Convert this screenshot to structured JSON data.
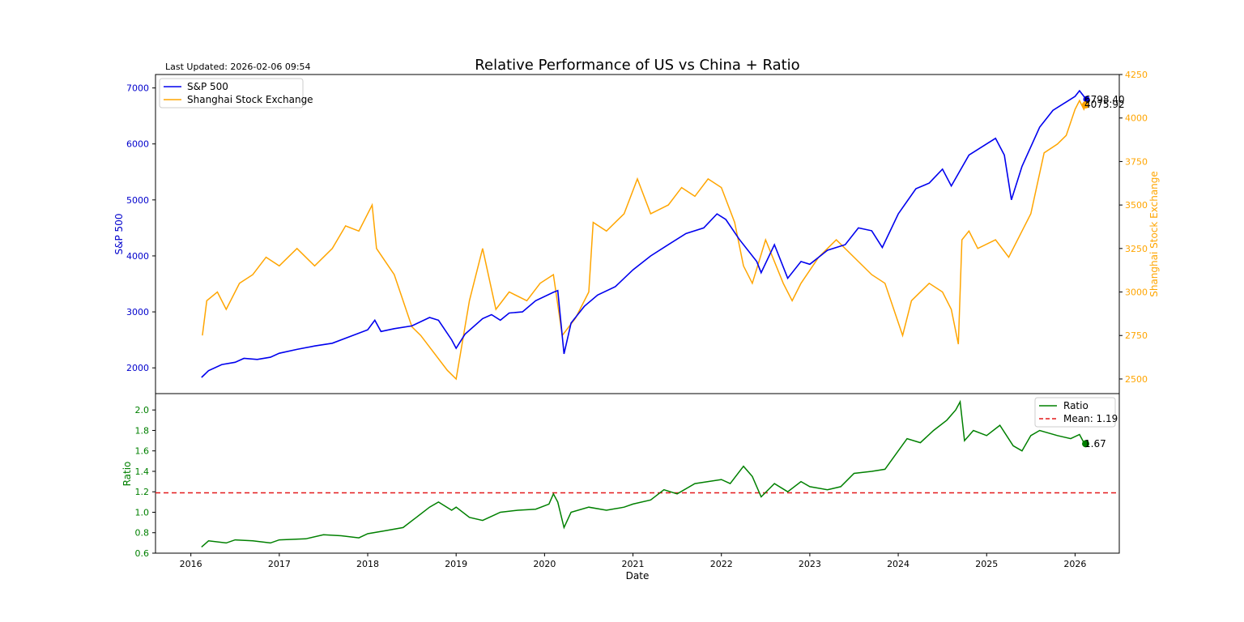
{
  "page": {
    "last_updated": "Last Updated: 2026-02-06 09:54"
  },
  "colors": {
    "sp500": "#0000ee",
    "shanghai": "#ffa500",
    "ratio": "#008000",
    "mean": "#e31a1c",
    "axis": "#000000"
  },
  "chart_data": [
    {
      "type": "line",
      "title": "Relative Performance of US vs China + Ratio",
      "xlabel": "",
      "ylabel_left": "S&P 500",
      "ylabel_right": "Shanghai Stock Exchange",
      "xlim": [
        2015.6,
        2026.5
      ],
      "ylim_left": [
        1540,
        7240
      ],
      "ylim_right": [
        2416,
        4250
      ],
      "yticks_left": [
        2000,
        3000,
        4000,
        5000,
        6000,
        7000
      ],
      "yticks_right": [
        2500,
        2750,
        3000,
        3250,
        3500,
        3750,
        4000,
        4250
      ],
      "legend": "top-left",
      "series": [
        {
          "name": "S&P 500",
          "axis": "left",
          "last_label": "6798.40",
          "points": [
            [
              2016.12,
              1830
            ],
            [
              2016.2,
              1950
            ],
            [
              2016.35,
              2060
            ],
            [
              2016.5,
              2100
            ],
            [
              2016.6,
              2170
            ],
            [
              2016.75,
              2150
            ],
            [
              2016.9,
              2190
            ],
            [
              2017.0,
              2260
            ],
            [
              2017.2,
              2330
            ],
            [
              2017.4,
              2390
            ],
            [
              2017.6,
              2440
            ],
            [
              2017.8,
              2560
            ],
            [
              2018.0,
              2680
            ],
            [
              2018.08,
              2850
            ],
            [
              2018.15,
              2650
            ],
            [
              2018.3,
              2700
            ],
            [
              2018.5,
              2750
            ],
            [
              2018.7,
              2900
            ],
            [
              2018.8,
              2850
            ],
            [
              2018.95,
              2500
            ],
            [
              2019.0,
              2350
            ],
            [
              2019.1,
              2600
            ],
            [
              2019.3,
              2880
            ],
            [
              2019.4,
              2950
            ],
            [
              2019.5,
              2850
            ],
            [
              2019.6,
              2980
            ],
            [
              2019.75,
              3000
            ],
            [
              2019.9,
              3200
            ],
            [
              2020.1,
              3350
            ],
            [
              2020.15,
              3380
            ],
            [
              2020.22,
              2250
            ],
            [
              2020.3,
              2800
            ],
            [
              2020.45,
              3100
            ],
            [
              2020.6,
              3300
            ],
            [
              2020.8,
              3450
            ],
            [
              2021.0,
              3750
            ],
            [
              2021.2,
              4000
            ],
            [
              2021.4,
              4200
            ],
            [
              2021.6,
              4400
            ],
            [
              2021.8,
              4500
            ],
            [
              2021.95,
              4750
            ],
            [
              2022.05,
              4650
            ],
            [
              2022.2,
              4300
            ],
            [
              2022.4,
              3900
            ],
            [
              2022.45,
              3700
            ],
            [
              2022.6,
              4200
            ],
            [
              2022.75,
              3600
            ],
            [
              2022.9,
              3900
            ],
            [
              2023.0,
              3850
            ],
            [
              2023.2,
              4100
            ],
            [
              2023.4,
              4200
            ],
            [
              2023.55,
              4500
            ],
            [
              2023.7,
              4450
            ],
            [
              2023.82,
              4150
            ],
            [
              2024.0,
              4750
            ],
            [
              2024.2,
              5200
            ],
            [
              2024.35,
              5300
            ],
            [
              2024.5,
              5550
            ],
            [
              2024.6,
              5250
            ],
            [
              2024.8,
              5800
            ],
            [
              2025.0,
              6000
            ],
            [
              2025.1,
              6100
            ],
            [
              2025.2,
              5800
            ],
            [
              2025.28,
              5000
            ],
            [
              2025.4,
              5600
            ],
            [
              2025.6,
              6300
            ],
            [
              2025.75,
              6600
            ],
            [
              2025.9,
              6750
            ],
            [
              2026.0,
              6850
            ],
            [
              2026.05,
              6950
            ],
            [
              2026.1,
              6850
            ],
            [
              2026.12,
              6798
            ]
          ]
        },
        {
          "name": "Shanghai Stock Exchange",
          "axis": "right",
          "last_label": "4075.92",
          "points": [
            [
              2016.13,
              2750
            ],
            [
              2016.18,
              2950
            ],
            [
              2016.3,
              3000
            ],
            [
              2016.4,
              2900
            ],
            [
              2016.55,
              3050
            ],
            [
              2016.7,
              3100
            ],
            [
              2016.85,
              3200
            ],
            [
              2017.0,
              3150
            ],
            [
              2017.2,
              3250
            ],
            [
              2017.4,
              3150
            ],
            [
              2017.6,
              3250
            ],
            [
              2017.75,
              3380
            ],
            [
              2017.9,
              3350
            ],
            [
              2018.05,
              3500
            ],
            [
              2018.1,
              3250
            ],
            [
              2018.3,
              3100
            ],
            [
              2018.5,
              2800
            ],
            [
              2018.6,
              2750
            ],
            [
              2018.9,
              2550
            ],
            [
              2019.0,
              2500
            ],
            [
              2019.15,
              2950
            ],
            [
              2019.3,
              3250
            ],
            [
              2019.45,
              2900
            ],
            [
              2019.6,
              3000
            ],
            [
              2019.8,
              2950
            ],
            [
              2019.95,
              3050
            ],
            [
              2020.1,
              3100
            ],
            [
              2020.2,
              2750
            ],
            [
              2020.35,
              2850
            ],
            [
              2020.5,
              3000
            ],
            [
              2020.55,
              3400
            ],
            [
              2020.7,
              3350
            ],
            [
              2020.9,
              3450
            ],
            [
              2021.05,
              3650
            ],
            [
              2021.2,
              3450
            ],
            [
              2021.4,
              3500
            ],
            [
              2021.55,
              3600
            ],
            [
              2021.7,
              3550
            ],
            [
              2021.85,
              3650
            ],
            [
              2022.0,
              3600
            ],
            [
              2022.15,
              3400
            ],
            [
              2022.25,
              3150
            ],
            [
              2022.35,
              3050
            ],
            [
              2022.5,
              3300
            ],
            [
              2022.7,
              3050
            ],
            [
              2022.8,
              2950
            ],
            [
              2022.9,
              3050
            ],
            [
              2023.1,
              3200
            ],
            [
              2023.3,
              3300
            ],
            [
              2023.5,
              3200
            ],
            [
              2023.7,
              3100
            ],
            [
              2023.85,
              3050
            ],
            [
              2024.05,
              2750
            ],
            [
              2024.15,
              2950
            ],
            [
              2024.35,
              3050
            ],
            [
              2024.5,
              3000
            ],
            [
              2024.6,
              2900
            ],
            [
              2024.68,
              2700
            ],
            [
              2024.72,
              3300
            ],
            [
              2024.8,
              3350
            ],
            [
              2024.9,
              3250
            ],
            [
              2025.1,
              3300
            ],
            [
              2025.25,
              3200
            ],
            [
              2025.4,
              3350
            ],
            [
              2025.5,
              3450
            ],
            [
              2025.65,
              3800
            ],
            [
              2025.8,
              3850
            ],
            [
              2025.9,
              3900
            ],
            [
              2026.0,
              4050
            ],
            [
              2026.05,
              4100
            ],
            [
              2026.1,
              4050
            ],
            [
              2026.12,
              4076
            ]
          ]
        }
      ]
    },
    {
      "type": "line",
      "title": "",
      "xlabel": "Date",
      "ylabel": "Ratio",
      "xlim": [
        2015.6,
        2026.5
      ],
      "ylim": [
        0.6,
        2.16
      ],
      "xticks": [
        "2016",
        "2017",
        "2018",
        "2019",
        "2020",
        "2021",
        "2022",
        "2023",
        "2024",
        "2025",
        "2026"
      ],
      "yticks": [
        "0.6",
        "0.8",
        "1.0",
        "1.2",
        "1.4",
        "1.6",
        "1.8",
        "2.0"
      ],
      "legend": "top-right",
      "mean": {
        "label": "Mean: 1.19",
        "value": 1.19
      },
      "series": [
        {
          "name": "Ratio",
          "last_label": "1.67",
          "points": [
            [
              2016.12,
              0.66
            ],
            [
              2016.2,
              0.72
            ],
            [
              2016.4,
              0.7
            ],
            [
              2016.5,
              0.73
            ],
            [
              2016.7,
              0.72
            ],
            [
              2016.9,
              0.7
            ],
            [
              2017.0,
              0.73
            ],
            [
              2017.3,
              0.74
            ],
            [
              2017.5,
              0.78
            ],
            [
              2017.7,
              0.77
            ],
            [
              2017.9,
              0.75
            ],
            [
              2018.0,
              0.79
            ],
            [
              2018.2,
              0.82
            ],
            [
              2018.4,
              0.85
            ],
            [
              2018.55,
              0.95
            ],
            [
              2018.7,
              1.05
            ],
            [
              2018.8,
              1.1
            ],
            [
              2018.95,
              1.02
            ],
            [
              2019.0,
              1.05
            ],
            [
              2019.15,
              0.95
            ],
            [
              2019.3,
              0.92
            ],
            [
              2019.5,
              1.0
            ],
            [
              2019.7,
              1.02
            ],
            [
              2019.9,
              1.03
            ],
            [
              2020.05,
              1.08
            ],
            [
              2020.1,
              1.18
            ],
            [
              2020.15,
              1.1
            ],
            [
              2020.22,
              0.85
            ],
            [
              2020.3,
              1.0
            ],
            [
              2020.5,
              1.05
            ],
            [
              2020.7,
              1.02
            ],
            [
              2020.9,
              1.05
            ],
            [
              2021.0,
              1.08
            ],
            [
              2021.2,
              1.12
            ],
            [
              2021.35,
              1.22
            ],
            [
              2021.5,
              1.18
            ],
            [
              2021.7,
              1.28
            ],
            [
              2021.85,
              1.3
            ],
            [
              2022.0,
              1.32
            ],
            [
              2022.1,
              1.28
            ],
            [
              2022.25,
              1.45
            ],
            [
              2022.35,
              1.35
            ],
            [
              2022.45,
              1.15
            ],
            [
              2022.6,
              1.28
            ],
            [
              2022.75,
              1.2
            ],
            [
              2022.9,
              1.3
            ],
            [
              2023.0,
              1.25
            ],
            [
              2023.2,
              1.22
            ],
            [
              2023.35,
              1.25
            ],
            [
              2023.5,
              1.38
            ],
            [
              2023.7,
              1.4
            ],
            [
              2023.85,
              1.42
            ],
            [
              2024.0,
              1.6
            ],
            [
              2024.1,
              1.72
            ],
            [
              2024.25,
              1.68
            ],
            [
              2024.4,
              1.8
            ],
            [
              2024.55,
              1.9
            ],
            [
              2024.65,
              2.0
            ],
            [
              2024.7,
              2.08
            ],
            [
              2024.75,
              1.7
            ],
            [
              2024.85,
              1.8
            ],
            [
              2025.0,
              1.75
            ],
            [
              2025.15,
              1.85
            ],
            [
              2025.3,
              1.65
            ],
            [
              2025.4,
              1.6
            ],
            [
              2025.5,
              1.75
            ],
            [
              2025.6,
              1.8
            ],
            [
              2025.8,
              1.75
            ],
            [
              2025.95,
              1.72
            ],
            [
              2026.05,
              1.76
            ],
            [
              2026.1,
              1.68
            ],
            [
              2026.12,
              1.67
            ]
          ]
        }
      ]
    }
  ]
}
